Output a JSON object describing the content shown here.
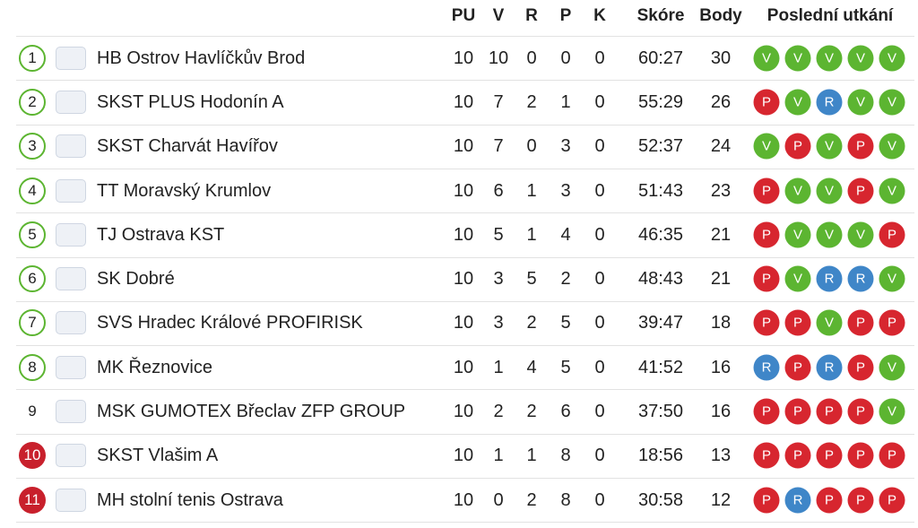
{
  "table": {
    "columns": [
      "PU",
      "V",
      "R",
      "P",
      "K",
      "Skóre",
      "Body",
      "Poslední utkání"
    ],
    "form_colors": {
      "V": "#5cb531",
      "P": "#d7262f",
      "R": "#3f86c8"
    },
    "rank_colors": {
      "outline": "#5cb531",
      "filled": "#c8202c"
    },
    "rows": [
      {
        "rank": "1",
        "rank_style": "outline",
        "team": "HB Ostrov Havlíčkův Brod",
        "stats": [
          "10",
          "10",
          "0",
          "0",
          "0",
          "60:27",
          "30"
        ],
        "form": [
          "V",
          "V",
          "V",
          "V",
          "V"
        ]
      },
      {
        "rank": "2",
        "rank_style": "outline",
        "team": "SKST PLUS Hodonín A",
        "stats": [
          "10",
          "7",
          "2",
          "1",
          "0",
          "55:29",
          "26"
        ],
        "form": [
          "P",
          "V",
          "R",
          "V",
          "V"
        ]
      },
      {
        "rank": "3",
        "rank_style": "outline",
        "team": "SKST Charvát Havířov",
        "stats": [
          "10",
          "7",
          "0",
          "3",
          "0",
          "52:37",
          "24"
        ],
        "form": [
          "V",
          "P",
          "V",
          "P",
          "V"
        ]
      },
      {
        "rank": "4",
        "rank_style": "outline",
        "team": "TT Moravský Krumlov",
        "stats": [
          "10",
          "6",
          "1",
          "3",
          "0",
          "51:43",
          "23"
        ],
        "form": [
          "P",
          "V",
          "V",
          "P",
          "V"
        ]
      },
      {
        "rank": "5",
        "rank_style": "outline",
        "team": "TJ Ostrava KST",
        "stats": [
          "10",
          "5",
          "1",
          "4",
          "0",
          "46:35",
          "21"
        ],
        "form": [
          "P",
          "V",
          "V",
          "V",
          "P"
        ]
      },
      {
        "rank": "6",
        "rank_style": "outline",
        "team": "SK Dobré",
        "stats": [
          "10",
          "3",
          "5",
          "2",
          "0",
          "48:43",
          "21"
        ],
        "form": [
          "P",
          "V",
          "R",
          "R",
          "V"
        ]
      },
      {
        "rank": "7",
        "rank_style": "outline",
        "team": "SVS Hradec Králové PROFIRISK",
        "stats": [
          "10",
          "3",
          "2",
          "5",
          "0",
          "39:47",
          "18"
        ],
        "form": [
          "P",
          "P",
          "V",
          "P",
          "P"
        ]
      },
      {
        "rank": "8",
        "rank_style": "outline",
        "team": "MK Řeznovice",
        "stats": [
          "10",
          "1",
          "4",
          "5",
          "0",
          "41:52",
          "16"
        ],
        "form": [
          "R",
          "P",
          "R",
          "P",
          "V"
        ]
      },
      {
        "rank": "9",
        "rank_style": "plain",
        "team": "MSK GUMOTEX Břeclav ZFP GROUP",
        "stats": [
          "10",
          "2",
          "2",
          "6",
          "0",
          "37:50",
          "16"
        ],
        "form": [
          "P",
          "P",
          "P",
          "P",
          "V"
        ]
      },
      {
        "rank": "10",
        "rank_style": "filled",
        "team": "SKST Vlašim A",
        "stats": [
          "10",
          "1",
          "1",
          "8",
          "0",
          "18:56",
          "13"
        ],
        "form": [
          "P",
          "P",
          "P",
          "P",
          "P"
        ]
      },
      {
        "rank": "11",
        "rank_style": "filled",
        "team": "MH stolní tenis Ostrava",
        "stats": [
          "10",
          "0",
          "2",
          "8",
          "0",
          "30:58",
          "12"
        ],
        "form": [
          "P",
          "R",
          "P",
          "P",
          "P"
        ]
      }
    ]
  }
}
